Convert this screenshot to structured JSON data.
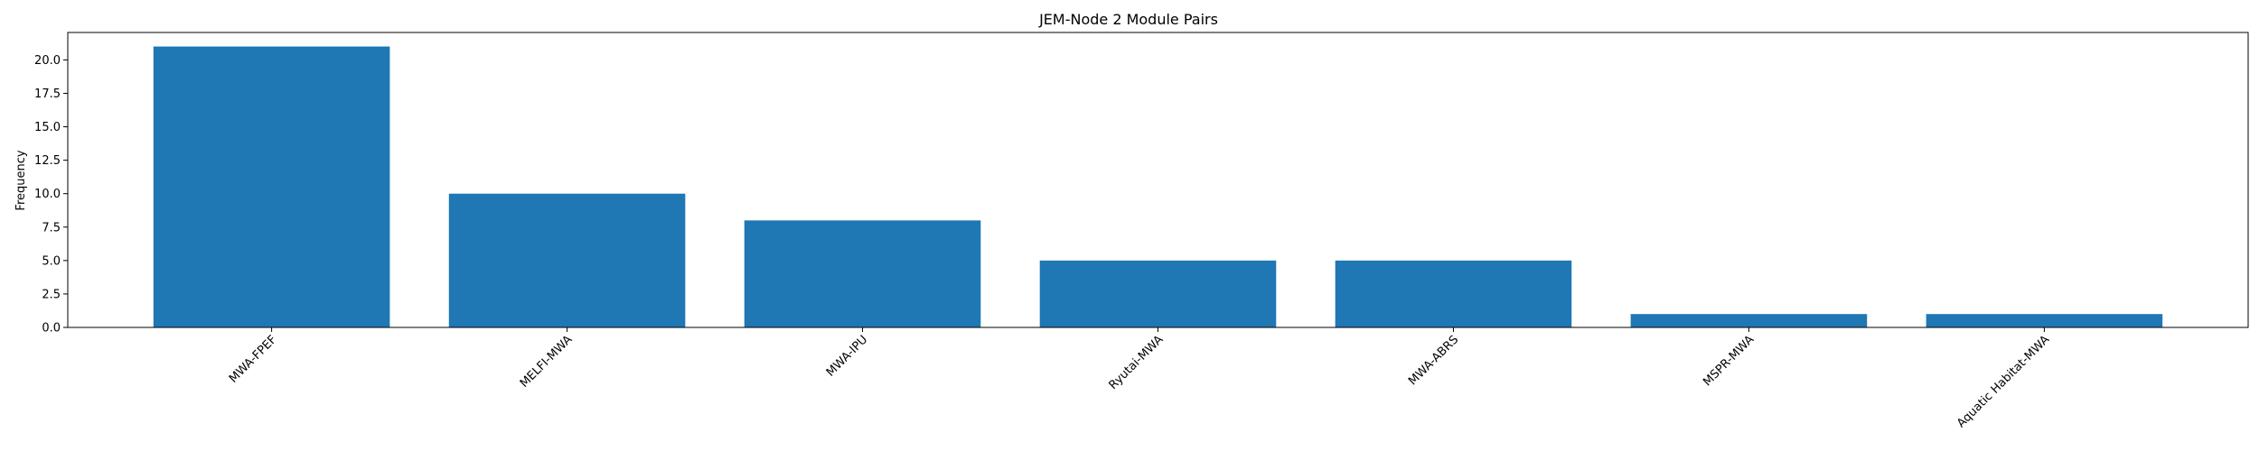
{
  "chart_data": {
    "type": "bar",
    "title": "JEM-Node 2 Module Pairs",
    "xlabel": "",
    "ylabel": "Frequency",
    "categories": [
      "MWA-FPEF",
      "MELFI-MWA",
      "MWA-IPU",
      "Ryutai-MWA",
      "MWA-ABRS",
      "MSPR-MWA",
      "Aquatic Habitat-MWA"
    ],
    "values": [
      21,
      10,
      8,
      5,
      5,
      1,
      1
    ],
    "ylim": [
      0,
      22.05
    ],
    "yticks": [
      "0.0",
      "2.5",
      "5.0",
      "7.5",
      "10.0",
      "12.5",
      "15.0",
      "17.5",
      "20.0"
    ],
    "bar_color": "#1f77b4",
    "grid": false,
    "legend": false
  }
}
